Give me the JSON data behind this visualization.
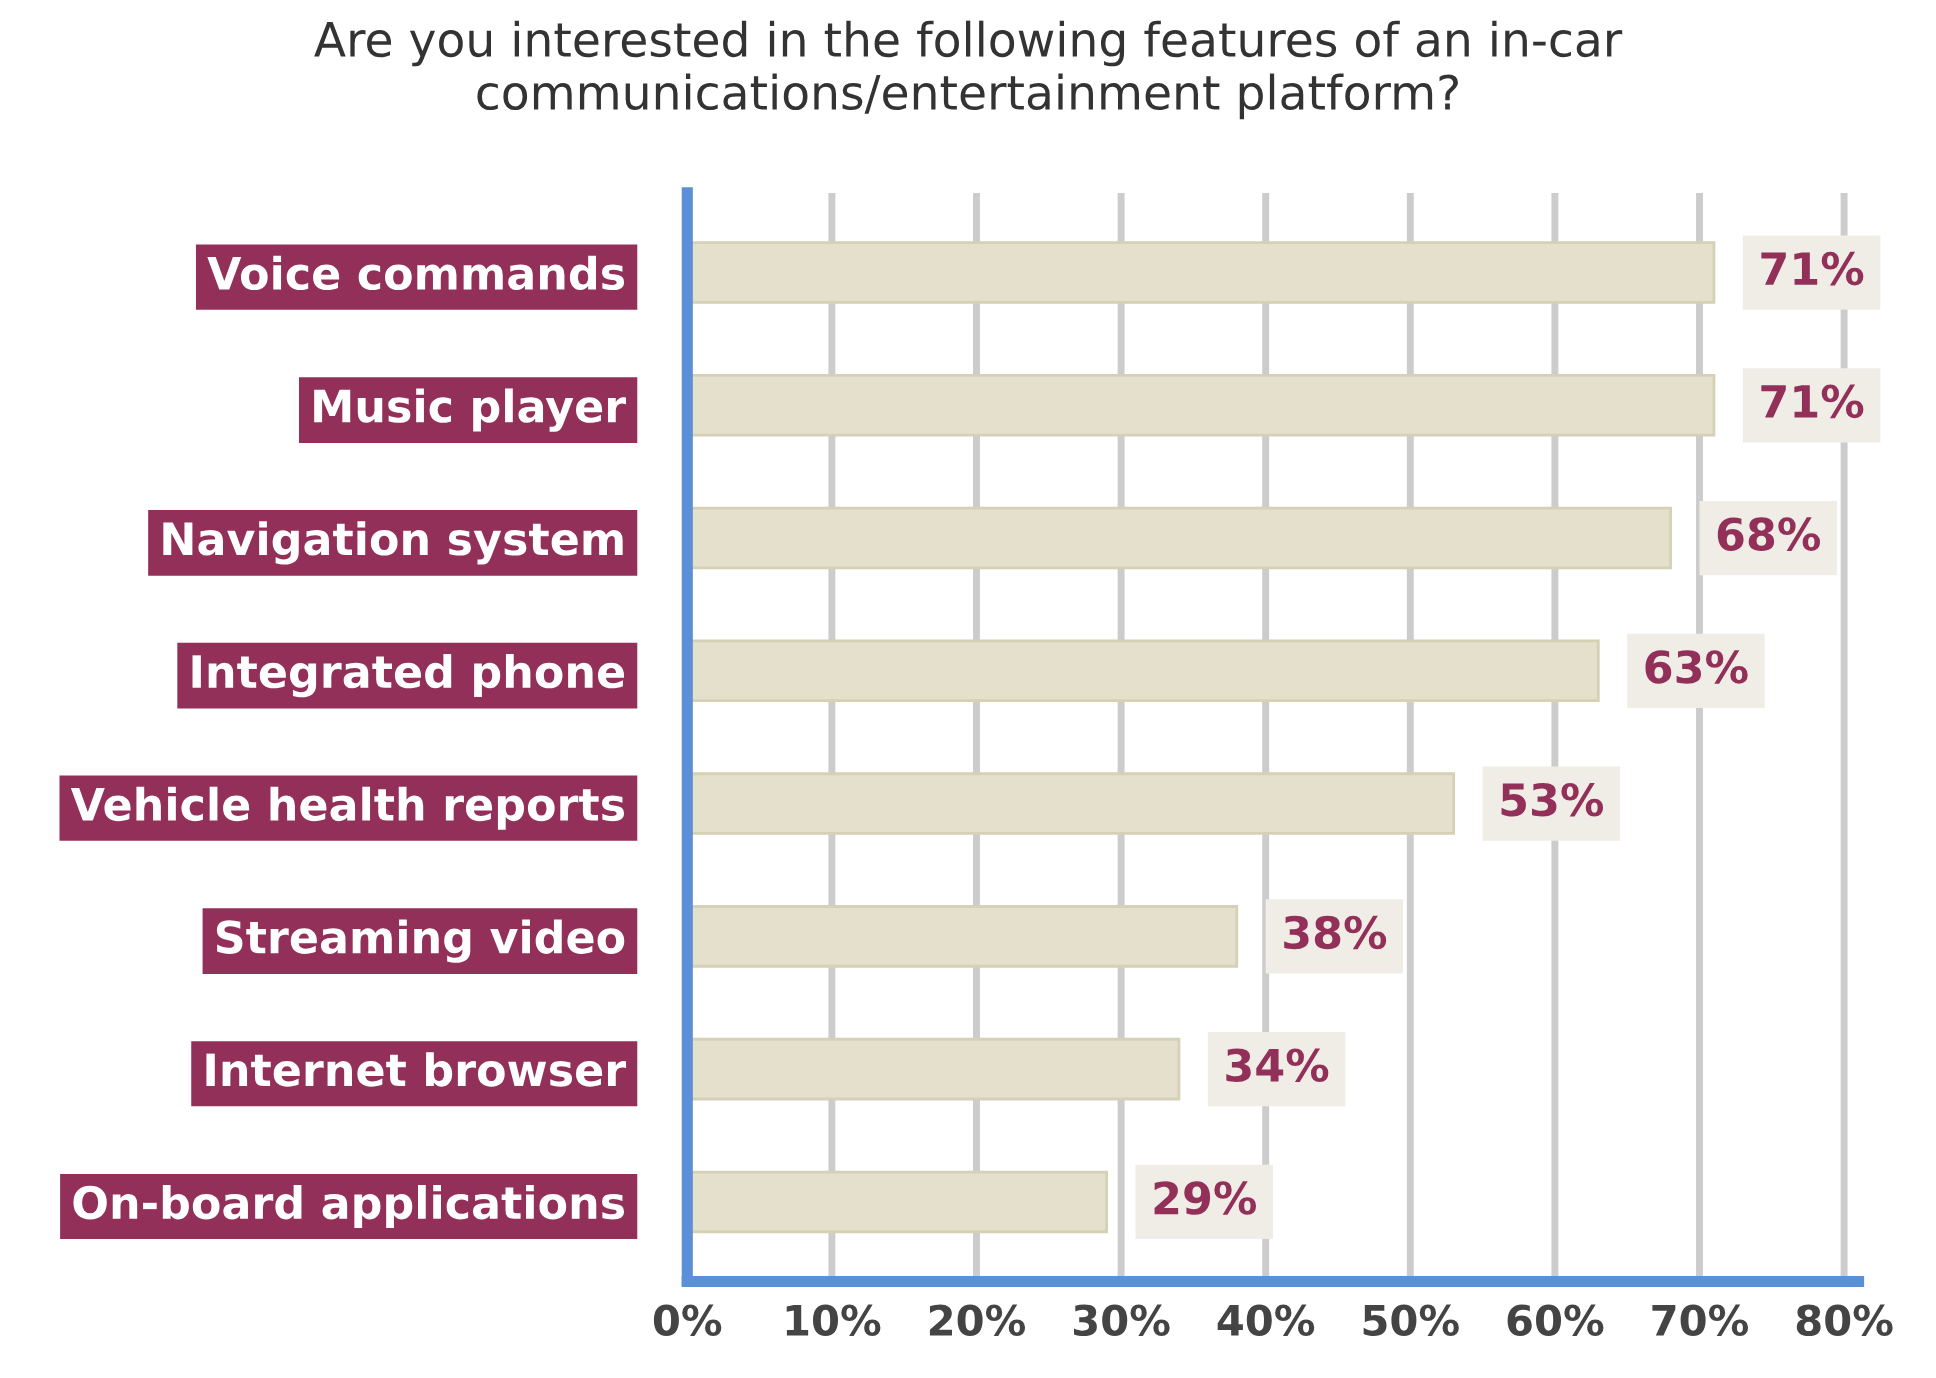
{
  "chart_data": {
    "type": "bar",
    "orientation": "horizontal",
    "title": "Are you interested in the following features of an in-car\ncommunications/entertainment platform?",
    "categories": [
      "Voice commands",
      "Music player",
      "Navigation system",
      "Integrated phone",
      "Vehicle health reports",
      "Streaming video",
      "Internet browser",
      "On-board applications"
    ],
    "values": [
      71,
      71,
      68,
      63,
      53,
      38,
      34,
      29
    ],
    "value_labels": [
      "71%",
      "71%",
      "68%",
      "63%",
      "53%",
      "38%",
      "34%",
      "29%"
    ],
    "color": "#e4e0cc",
    "xlim": [
      0,
      81
    ],
    "xticks": [
      {
        "value": 0,
        "label": "0%"
      },
      {
        "value": 10,
        "label": "10%"
      },
      {
        "value": 20,
        "label": "20%"
      },
      {
        "value": 30,
        "label": "30%"
      },
      {
        "value": 40,
        "label": "40%"
      },
      {
        "value": 50,
        "label": "50%"
      },
      {
        "value": 60,
        "label": "60%"
      },
      {
        "value": 70,
        "label": "70%"
      },
      {
        "value": 80,
        "label": "80%"
      }
    ],
    "grid": "x"
  }
}
